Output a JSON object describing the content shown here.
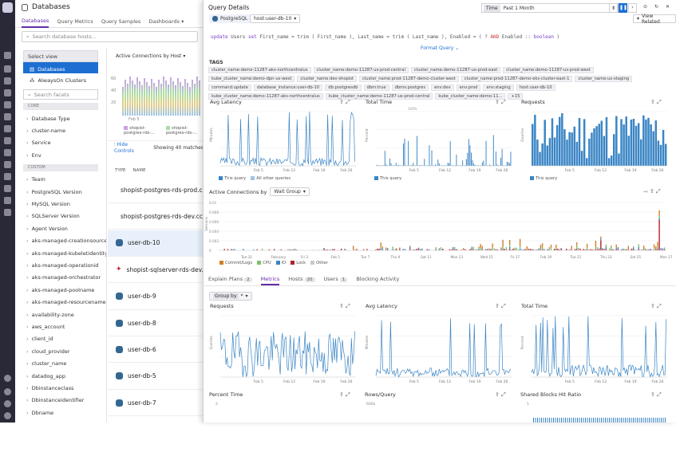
{
  "app": {
    "title": "Databases"
  },
  "nav_tabs": [
    "Databases",
    "Query Metrics",
    "Query Samples",
    "Dashboards"
  ],
  "search": {
    "placeholder": "Search database hosts..."
  },
  "facets": {
    "select_view": "Select view",
    "views": [
      "Databases",
      "AlwaysOn Clusters"
    ],
    "search_placeholder": "Search facets",
    "core_label": "CORE",
    "core": [
      "Database Type",
      "cluster-name",
      "Service",
      "Env"
    ],
    "custom_label": "CUSTOM",
    "custom": [
      "Team",
      "PostgreSQL Version",
      "MySQL Version",
      "SQLServer Version",
      "Agent Version",
      "aks-managed-creationsource",
      "aks-managed-kubeletidentityclie...",
      "aks-managed-operationid",
      "aks-managed-orchestrator",
      "aks-managed-poolname",
      "aks-managed-resourcenameSu...",
      "availability-zone",
      "aws_account",
      "client_id",
      "cloud_provider",
      "cluster_name",
      "datadog_app",
      "Dbinstanceclass",
      "Dbinstanceidentifier",
      "Dbname"
    ]
  },
  "overview": {
    "metric_select": "Active Connections by Host",
    "y_ticks": [
      "60",
      "40",
      "20"
    ],
    "x_tick": "Feb 5",
    "legend": [
      "shopist-postgres-rds-...",
      "shopist-postgres-rds-..."
    ],
    "hide_controls": "Hide Controls",
    "showing": "Showing 40 matches"
  },
  "list": {
    "col_type": "TYPE",
    "col_name": "NAME",
    "rows": [
      "shopist-postgres-rds-prod.cceh",
      "shopist-postgres-rds-dev.cceh",
      "user-db-10",
      "shopist-sqlserver-rds-dev.cceh",
      "user-db-9",
      "user-db-8",
      "user-db-6",
      "user-db-5",
      "user-db-7"
    ]
  },
  "panel": {
    "title": "Query Details",
    "time_label": "Time",
    "time_value": "Past 1 Month",
    "view_related": "View Related",
    "db_badge": "PostgreSQL",
    "host_select": "host:user-db-10",
    "query": {
      "kw1": "update",
      "p1": " Users ",
      "kw2": "set",
      "p2": " First_name = trim ( First_name ), Last_name = trim ( Last_name ), Enabled = ( ? ",
      "kw3": "AND",
      "p3": " Enabled :: ",
      "kw4": "boolean",
      "p4": " )"
    },
    "format_query": "Format Query",
    "tags_title": "TAGS",
    "tags": [
      "cluster_name:demo-11287-aks-northcentralus",
      "cluster_name:demo-11287-us-prod-central",
      "cluster_name:demo-11287-us-prod-east",
      "cluster_name:demo-11287-us-prod-west",
      "kube_cluster_name:demo-dpn-us-west",
      "cluster_name:dev-shopist",
      "cluster_name:prod-11287-demo-cluster-west",
      "cluster_name:prod-11287-demo-eks-cluster-east-1",
      "cluster_name:us-staging",
      "command:update",
      "database_instance:user-db-10",
      "db:postgresdb",
      "dbm:true",
      "dbms:postgres",
      "env:dev",
      "env:prod",
      "env:staging",
      "host:user-db-10",
      "kube_cluster_name:demo-11287-aks-northcentralus",
      "kube_cluster_name:demo-11287-us-prod-central",
      "kube_cluster_name:demo-11...",
      "+15"
    ]
  },
  "charts_top": [
    {
      "title": "Avg Latency",
      "legend": [
        "This query",
        "All other queries"
      ],
      "ylabel": "Minutes",
      "x_ticks": [
        "Feb 5",
        "Feb 12",
        "Feb 19",
        "Feb 26"
      ]
    },
    {
      "title": "Total Time",
      "legend": [
        "This query"
      ],
      "ylabel": "Percent",
      "top": "100%",
      "x_ticks": [
        "Feb 5",
        "Feb 12",
        "Feb 19",
        "Feb 26"
      ]
    },
    {
      "title": "Requests",
      "legend": [
        "This query"
      ],
      "ylabel": "Queries",
      "x_ticks": [
        "Feb 5",
        "Feb 12",
        "Feb 19",
        "Feb 26"
      ]
    }
  ],
  "active_conn": {
    "title": "Active Connections by",
    "select": "Wait Group",
    "y_ticks": [
      "0.01",
      "0.008",
      "0.006",
      "0.004",
      "0.002",
      "0"
    ],
    "ylabel": "Sessions",
    "x_ticks": [
      "Tue 31",
      "February",
      "Fri 3",
      "Feb 5",
      "Tue 7",
      "Thu 9",
      "Sat 11",
      "Mon 13",
      "Wed 15",
      "Fri 17",
      "Feb 19",
      "Tue 21",
      "Thu 23",
      "Sat 25",
      "Mon 27"
    ],
    "legend": [
      "Commit/Logs",
      "CPU",
      "IO",
      "Lock",
      "Other"
    ]
  },
  "detail_tabs": [
    {
      "label": "Explain Plans",
      "count": "2"
    },
    {
      "label": "Metrics",
      "count": ""
    },
    {
      "label": "Hosts",
      "count": "20"
    },
    {
      "label": "Users",
      "count": "1"
    },
    {
      "label": "Blocking Activity",
      "count": ""
    }
  ],
  "group_by": {
    "label": "Group by",
    "value": "*"
  },
  "charts_bottom": [
    {
      "title": "Requests",
      "ylabel": "Queries",
      "x_ticks": [
        "Feb 5",
        "Feb 12",
        "Feb 19",
        "Feb 26"
      ]
    },
    {
      "title": "Avg Latency",
      "ylabel": "Minutes",
      "x_ticks": [
        "Feb 5",
        "Feb 12",
        "Feb 19",
        "Feb 26"
      ]
    },
    {
      "title": "Total Time",
      "ylabel": "Percent",
      "x_ticks": [
        "Feb 5",
        "Feb 12",
        "Feb 19",
        "Feb 26"
      ]
    }
  ],
  "charts_row3": [
    {
      "title": "Percent Time",
      "y_tick": "2"
    },
    {
      "title": "Rows/Query",
      "y_tick": "600k"
    },
    {
      "title": "Shared Blocks Hit Ratio",
      "y_tick": "1"
    }
  ],
  "colors": {
    "accent": "#632ca6",
    "blue": "#3a85c5",
    "light_blue": "#9fc3e4",
    "red": "#b5202a",
    "orange": "#d27e27",
    "green": "#7fbf6e"
  }
}
